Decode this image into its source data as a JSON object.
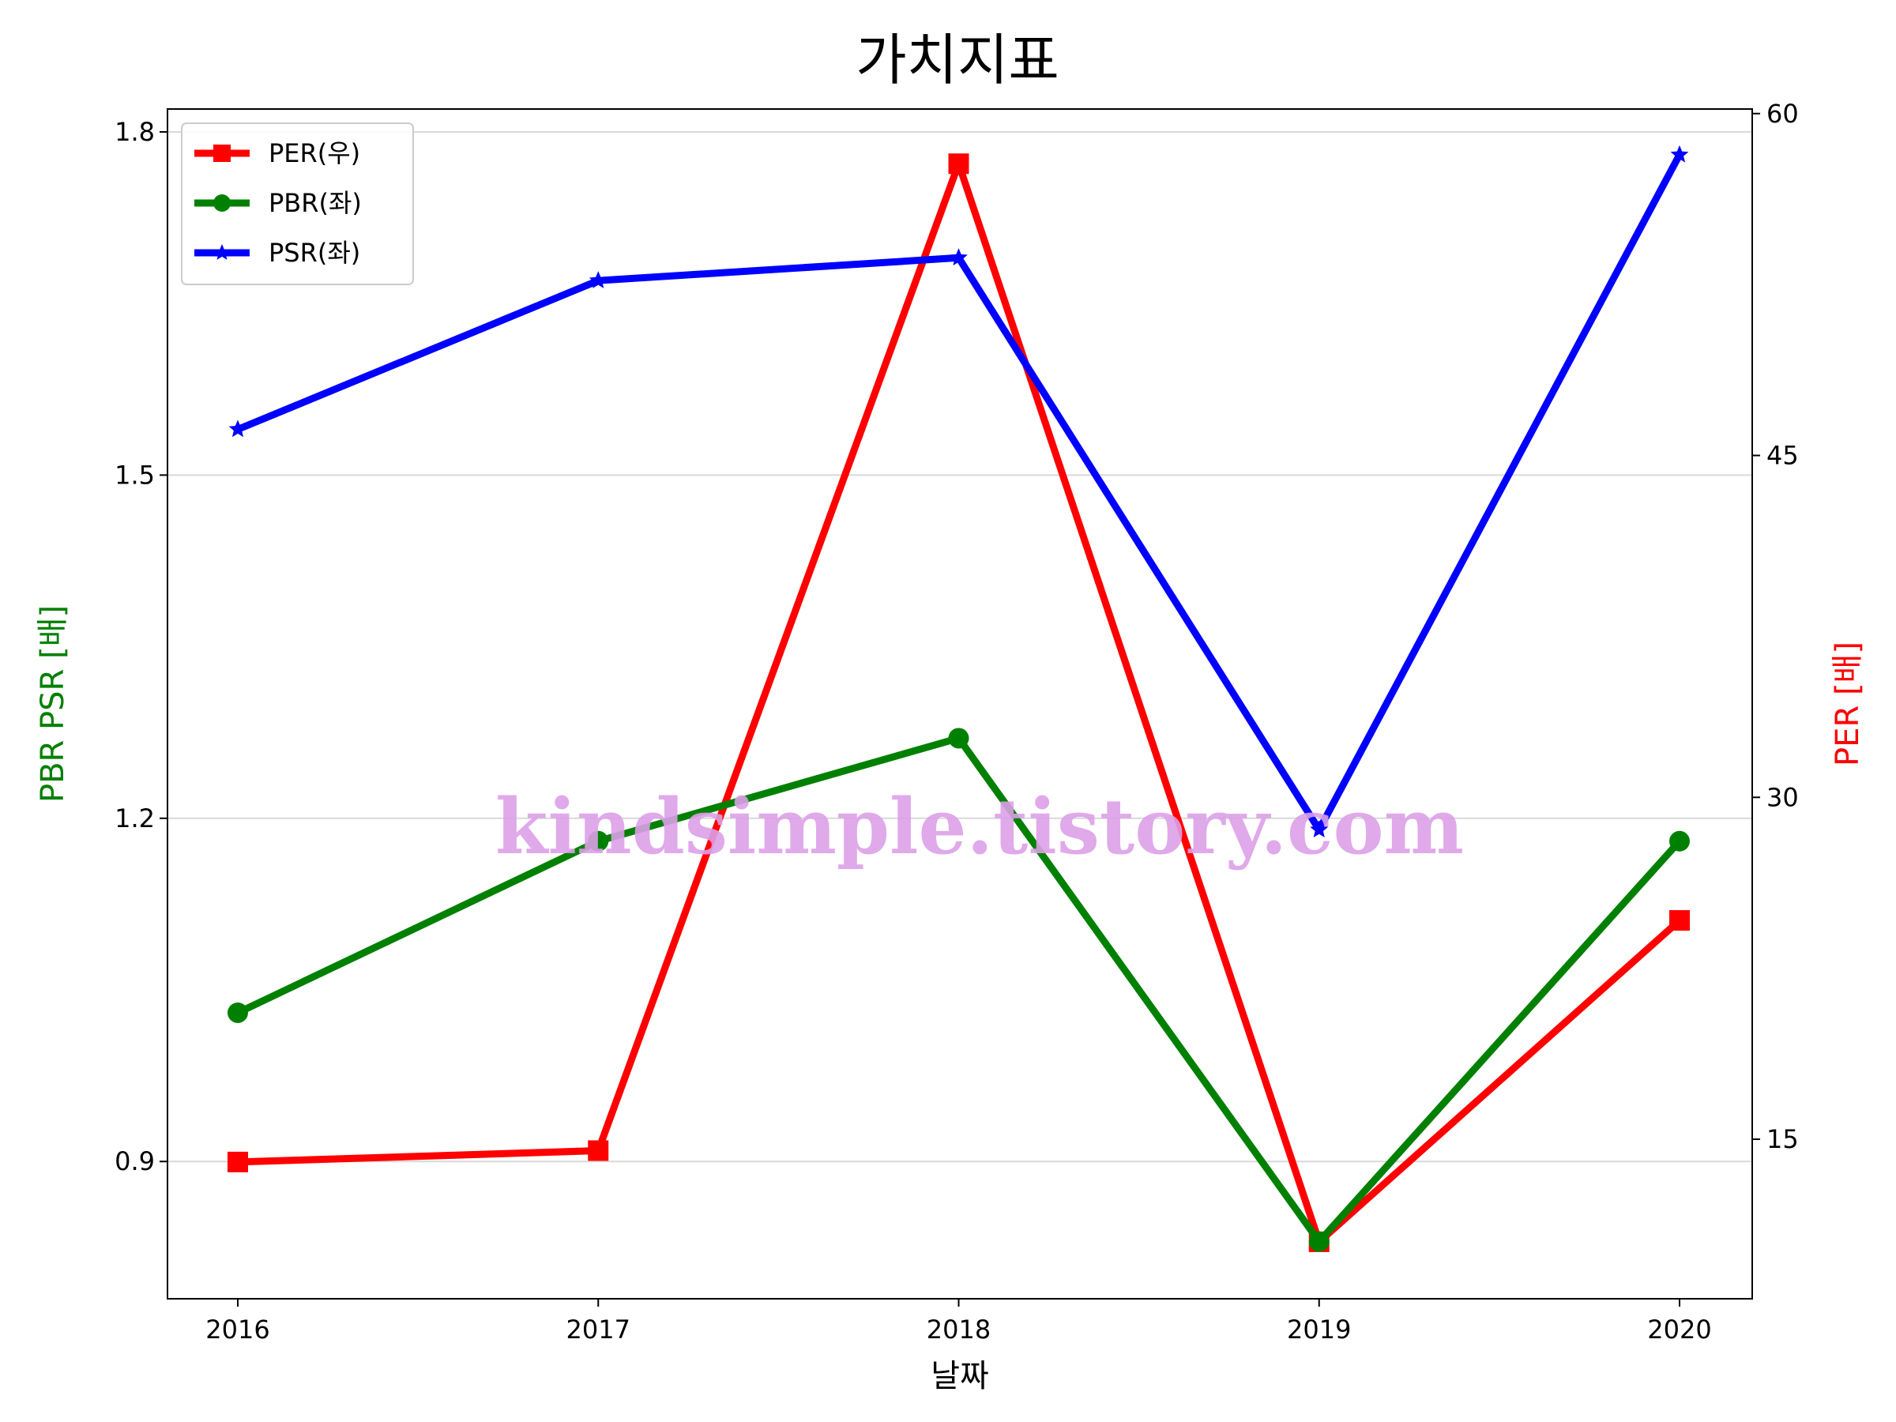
{
  "chart_data": {
    "type": "line",
    "title": "가치지표",
    "xlabel": "날짜",
    "ylabel_left": "PBR PSR [배]",
    "ylabel_right": "PER [배]",
    "categories": [
      "2016",
      "2017",
      "2018",
      "2019",
      "2020"
    ],
    "left_axis": {
      "ylim": [
        0.78,
        1.82
      ],
      "ticks": [
        "0.9",
        "1.2",
        "1.5",
        "1.8"
      ],
      "color": "#008000"
    },
    "right_axis": {
      "ylim": [
        8,
        60.2
      ],
      "ticks": [
        "15",
        "30",
        "45",
        "60"
      ],
      "color": "#ff0000"
    },
    "grid": true,
    "legend_position": "top-left",
    "series": [
      {
        "name": "PER(우)",
        "axis": "right",
        "color": "#ff0000",
        "marker": "square",
        "values": [
          14.0,
          14.5,
          57.8,
          10.5,
          24.6
        ]
      },
      {
        "name": "PBR(좌)",
        "axis": "left",
        "color": "#008000",
        "marker": "circle",
        "values": [
          1.03,
          1.18,
          1.27,
          0.83,
          1.18
        ]
      },
      {
        "name": "PSR(좌)",
        "axis": "left",
        "color": "#0000ff",
        "marker": "star",
        "values": [
          1.54,
          1.67,
          1.69,
          1.19,
          1.78
        ]
      }
    ],
    "watermark": "kindsimple.tistory.com"
  }
}
